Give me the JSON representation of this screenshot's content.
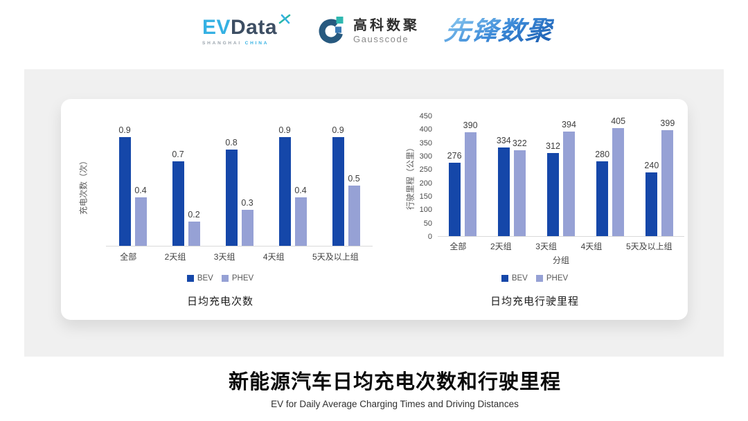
{
  "header": {
    "evdata": {
      "ev": "EV",
      "data_text": "Data",
      "shanghai": "SHANGHAI",
      "china": "CHINA"
    },
    "gausscode": {
      "cn": "高科数聚",
      "en": "Gausscode"
    },
    "xianfeng": {
      "text": "先锋数聚"
    }
  },
  "colors": {
    "bev": "#1547a9",
    "phev": "#96a1d5",
    "evdata_light_blue": "#35b1e3",
    "evdata_dark": "#3d4e63",
    "gausscode_dark_blue": "#27597f",
    "gausscode_teal": "#2fb8b0",
    "xianfeng_blue": "#2f7fd1",
    "panel_gray": "#f0f0f0",
    "axis_line": "#d9d9d9"
  },
  "chart_data": [
    {
      "type": "bar",
      "title": "日均充电次数",
      "ylabel": "充电次数（次）",
      "xlabel": "",
      "categories": [
        "全部",
        "2天组",
        "3天组",
        "4天组",
        "5天及以上组"
      ],
      "series": [
        {
          "name": "BEV",
          "values": [
            0.9,
            0.7,
            0.8,
            0.9,
            0.9
          ]
        },
        {
          "name": "PHEV",
          "values": [
            0.4,
            0.2,
            0.3,
            0.4,
            0.5
          ]
        }
      ],
      "ylim": [
        0,
        1
      ],
      "yticks": [],
      "grid": false,
      "legend_position": "bottom",
      "data_labels": true
    },
    {
      "type": "bar",
      "title": "日均充电行驶里程",
      "ylabel": "行驶里程（公里）",
      "xlabel": "分组",
      "categories": [
        "全部",
        "2天组",
        "3天组",
        "4天组",
        "5天及以上组"
      ],
      "series": [
        {
          "name": "BEV",
          "values": [
            276,
            334,
            312,
            280,
            240
          ]
        },
        {
          "name": "PHEV",
          "values": [
            390,
            322,
            394,
            405,
            399
          ]
        }
      ],
      "ylim": [
        0,
        450
      ],
      "yticks": [
        0,
        50,
        100,
        150,
        200,
        250,
        300,
        350,
        400,
        450
      ],
      "grid": false,
      "legend_position": "bottom",
      "data_labels": true
    }
  ],
  "footer": {
    "title": "新能源汽车日均充电次数和行驶里程",
    "subtitle": "EV for Daily Average Charging Times and Driving Distances"
  }
}
